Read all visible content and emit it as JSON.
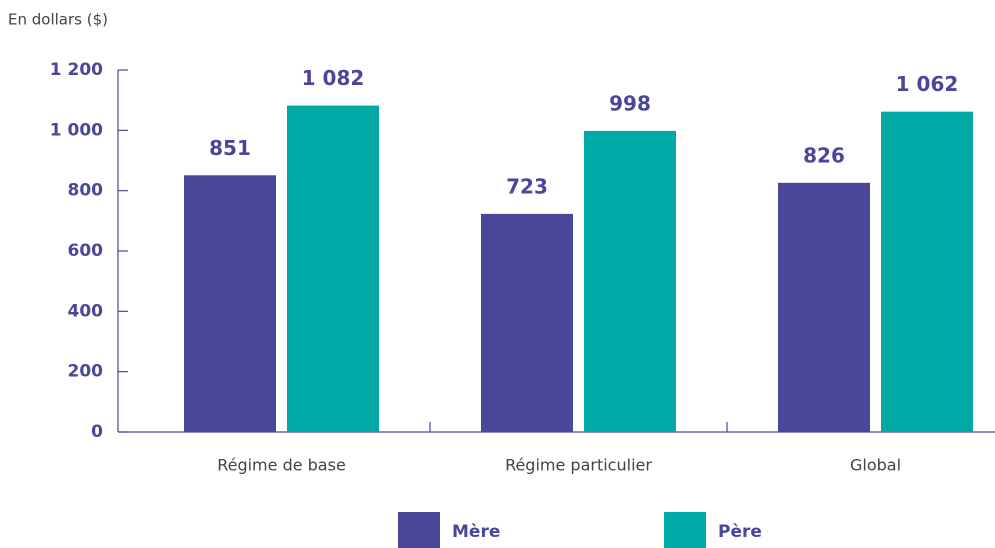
{
  "chart_data": {
    "type": "bar",
    "ylabel": "En dollars ($)",
    "categories": [
      "Régime de base",
      "Régime particulier",
      "Global"
    ],
    "series": [
      {
        "name": "Mère",
        "color": "#4a479b",
        "values": [
          851,
          723,
          826
        ],
        "value_labels": [
          "851",
          "723",
          "826"
        ]
      },
      {
        "name": "Père",
        "color": "#00a9a5",
        "values": [
          1082,
          998,
          1062
        ],
        "value_labels": [
          "1 082",
          "998",
          "1 062"
        ]
      }
    ],
    "ylim": [
      0,
      1200
    ],
    "yticks": [
      0,
      200,
      400,
      600,
      800,
      {
        "value": 1000,
        "label": "1 000"
      },
      {
        "value": 1200,
        "label": "1 200"
      }
    ]
  }
}
